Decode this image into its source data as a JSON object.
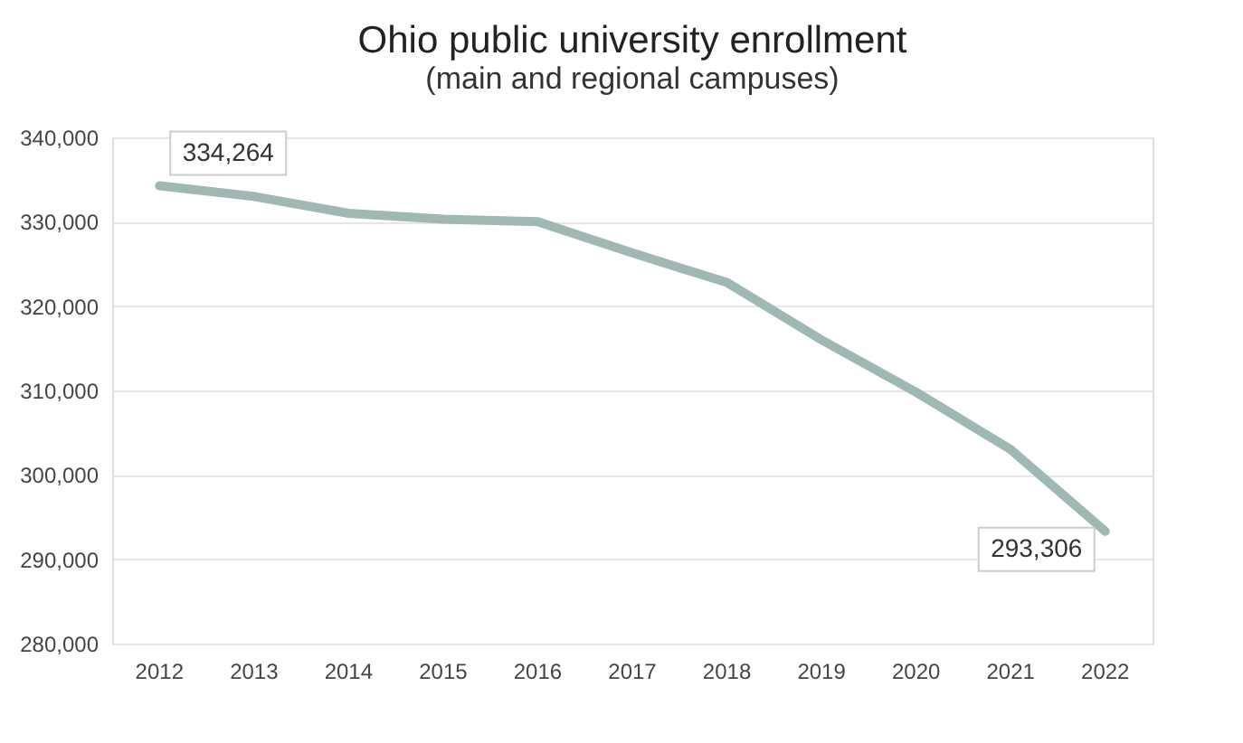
{
  "chart_data": {
    "type": "line",
    "title": "Ohio public university enrollment",
    "subtitle": "(main and regional campuses)",
    "categories": [
      "2012",
      "2013",
      "2014",
      "2015",
      "2016",
      "2017",
      "2018",
      "2019",
      "2020",
      "2021",
      "2022"
    ],
    "series": [
      {
        "color": "#9fb8b3",
        "values": [
          334264,
          333000,
          331000,
          330300,
          330000,
          326300,
          322800,
          316000,
          309800,
          303000,
          293306
        ],
        "value_labels": [
          "334,264",
          null,
          null,
          null,
          null,
          null,
          null,
          null,
          null,
          null,
          "293,306"
        ]
      }
    ],
    "ylim": [
      280000,
      340000
    ],
    "yticks": [
      {
        "value": 280000,
        "label": "280,000"
      },
      {
        "value": 290000,
        "label": "290,000"
      },
      {
        "value": 300000,
        "label": "300,000"
      },
      {
        "value": 310000,
        "label": "310,000"
      },
      {
        "value": 320000,
        "label": "320,000"
      },
      {
        "value": 330000,
        "label": "330,000"
      },
      {
        "value": 340000,
        "label": "340,000"
      }
    ],
    "grid": "y",
    "marker": "none",
    "line_style": "solid"
  }
}
